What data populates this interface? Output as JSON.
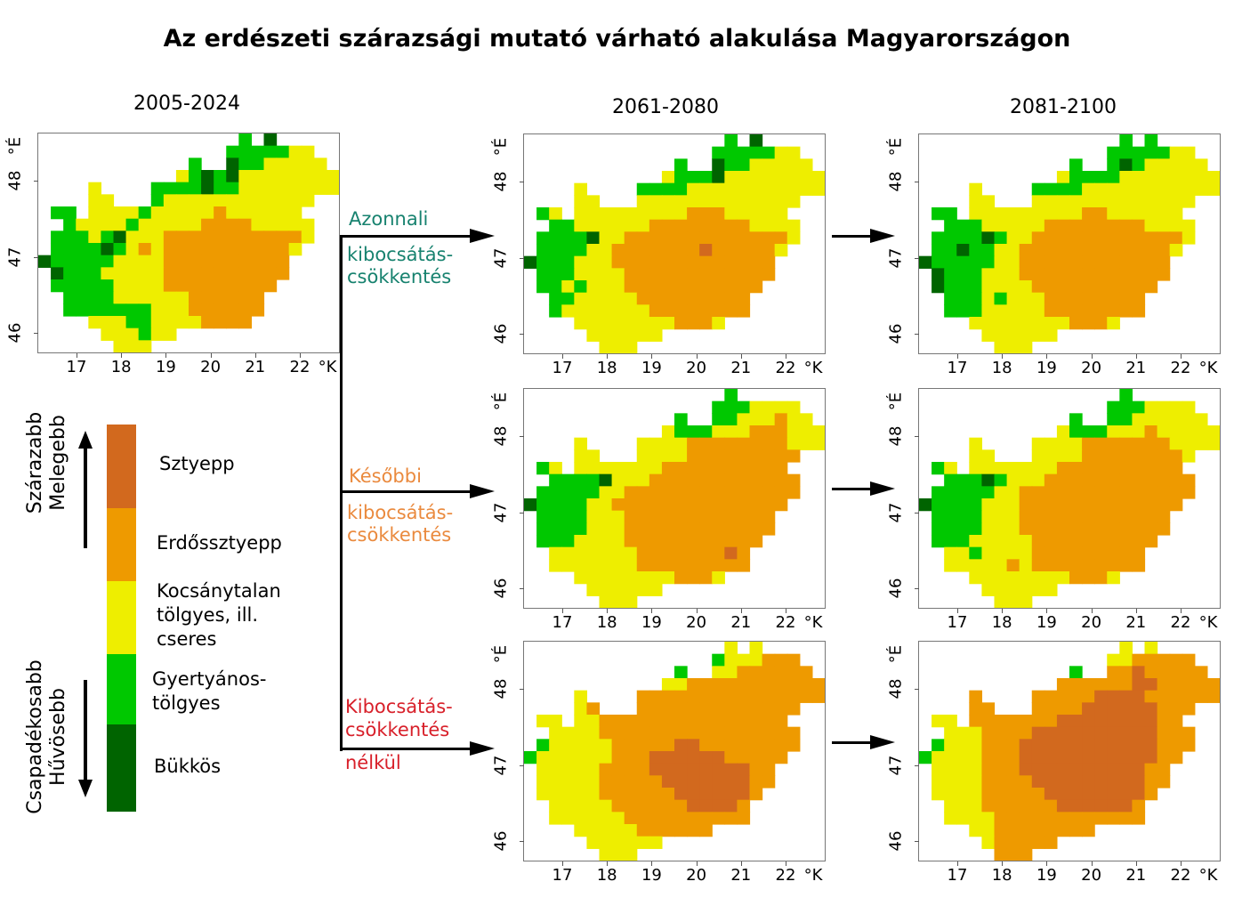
{
  "title": "Az erdészeti szárazsági mutató várható alakulása Magyarországon",
  "periods": [
    "2005-2024",
    "2061-2080",
    "2081-2100"
  ],
  "axes": {
    "lon_ticks": [
      "17",
      "18",
      "19",
      "20",
      "21",
      "22"
    ],
    "lon_unit": "°K",
    "lat_ticks": [
      "48",
      "47",
      "46"
    ],
    "lat_unit": "°É"
  },
  "scenarios": [
    {
      "line1": "Azonnali",
      "line2": "kibocsátás-",
      "line3": "csökkentés",
      "color": "#17826f"
    },
    {
      "line1": "Későbbi",
      "line2": "kibocsátás-",
      "line3": "csökkentés",
      "color": "#ea8a3e"
    },
    {
      "line1": "Kibocsátás-",
      "line2": "csökkentés",
      "line3": "nélkül",
      "color": "#d8202a"
    }
  ],
  "legend": {
    "top_axis": {
      "line1": "Szárazabb",
      "line2": "Melegebb"
    },
    "bottom_axis": {
      "line1": "Csapadékosabb",
      "line2": "Hűvösebb"
    },
    "classes": [
      {
        "code": "S",
        "label": "Sztyepp",
        "color": "#d2691e"
      },
      {
        "code": "O",
        "label": "Erdőssztyepp",
        "color": "#ee9a00"
      },
      {
        "code": "Y",
        "label": "Kocsánytalan tölgyes, ill. cseres",
        "label_lines": [
          "Kocsánytalan",
          "tölgyes, ill.",
          "cseres"
        ],
        "color": "#eeee00"
      },
      {
        "code": "G",
        "label": "Gyertyános-tölgyes",
        "label_lines": [
          "Gyertyános-",
          "tölgyes"
        ],
        "color": "#00c800"
      },
      {
        "code": "D",
        "label": "Bükkös",
        "color": "#006400"
      }
    ]
  },
  "maps": [
    {
      "period": "2005-2024",
      "scenario": "baseline",
      "grid": [
        "................G.D.....",
        "...............GGGGGYY..",
        "............G..DGGYYYYY.",
        "...........YGDGDYYYYYYYY",
        "....Y....GGGGDGGYYYYYYYY",
        "....YY...GYYYYYYYYYYYY..",
        ".GG.YYYYGYYYYYOYYYYYY...",
        "..GYYYYGYYYYYOOOOYYYYY..",
        ".GGGYGDYYYOOOOOOOOOOOY..",
        ".GGGGDGYOYOOOOOOOOOOY...",
        "DGGGGGYYYYOOOOOOOOOO....",
        ".DGGGYYYYYOOOOOOOOOO....",
        ".GGGGGYYYYOOOOOOOOO.....",
        "..GGGGYYYYYYOOOOOO......",
        "..GGGGGGGYYYOOOOOO......",
        "....YYYGGYYYYOOOO.......",
        ".....YYYGYY.............",
        "......YYY..............."
      ]
    },
    {
      "period": "2061-2080",
      "scenario": "Azonnali",
      "grid": [
        "................G.D.....",
        "...............GGGGGYY..",
        "............G..DGGYYYYY.",
        "...........YGGGDYYYYYYYY",
        "....Y....GGGGYYYYYYYYYYY",
        "....YY...YYYYYYYYYYYYY..",
        ".GY.YYYYYYYYYOOOYYYYY...",
        "..GGYYYYYYOOOOOOOOYYYY..",
        ".GGGGDYYOOOOOOOOOOOOOY..",
        ".GGGGYYOOOOOOOSOOOOOY...",
        "DGGGYYYOOOOOOOOOOOOO....",
        ".GGGYYYYOOOOOOOOOOOO....",
        ".GGYGYYYOOOOOOOOOOO.....",
        "..GGYYYYYOOOOOOOOO......",
        "..GYYYYYYYOOOOOOOO......",
        "....YYYYYYYYOOOY........",
        ".....YYYYYY.............",
        "......YYY..............."
      ]
    },
    {
      "period": "2081-2100",
      "scenario": "Azonnali",
      "grid": [
        "................G.G.....",
        "...............GGGGGYY..",
        "............G..GDGYYYYY.",
        "...........YGGGGYYYYYYYY",
        "....Y....GGGGYYYYYYYYYYY",
        "....YY...YYYYYYYYYYYYY..",
        ".GG.YYYYYYYYYOOYYYYYY...",
        "..GGGYYYYYOOOOOOOOYYYY..",
        ".GGGGDGYYOOOOOOOOOOOOY..",
        ".GGDGGYYOOOOOOOOOOOOY...",
        "DGGGGGYYOOOOOOOOOOOO....",
        ".DGGGYYYOOOOOOOOOOOO....",
        ".DGGGYYYYOOOOOOOOOO.....",
        "..GGGYGYYYOOOOOOOO......",
        "..GGGYYYYYOOOOOOOO......",
        "....YYYYYYYYOOOY........",
        ".....YYYYYY.............",
        "......YYY..............."
      ]
    },
    {
      "period": "2061-2080",
      "scenario": "Későbbi",
      "grid": [
        "................G.......",
        "...............GGGYYYY..",
        "............G..GGYYYOYY.",
        "...........YGGGYYYOOOYYY",
        "....Y....YYYYOOOOOOOOYYY",
        "....YY...YYYYOOOOOOOOO..",
        ".GY.YYYYYYYOOOOOOOOOO...",
        "..GGGGDYYYOOOOOOOOOOOO..",
        ".GGGGGYYOOOOOOOOOOOOOO..",
        "DGGGGYYOOOOOOOOOOOOOO...",
        ".GGGGYYYOOOOOOOOOOOO....",
        ".GGGGYYYOOOOOOOOOOOO....",
        ".GGGYYYYOOOOOOOOOOO.....",
        "..YYYYYYYOOOOOOOSO......",
        "..YYYYYYYOOOOOOOOO......",
        "....YYYYYYYYOOOY........",
        ".....YYYYYY.............",
        "......YYY..............."
      ]
    },
    {
      "period": "2081-2100",
      "scenario": "Későbbi",
      "grid": [
        "................G.......",
        "...............GGGYYYY..",
        "............G..GGYYYYYY.",
        "...........YGGGYYYOYYYYY",
        "....Y....YYYYOOOOOOOYYYY",
        "....YY...YYYYOOOOOOOOY..",
        ".GY.YYYYYYYOOOOOOOOOO...",
        "..GGGDGYYYOOOOOOOOOOOO..",
        ".GGGGGYYOOOOOOOOOOOOOO..",
        "DGGGGYYYOOOOOOOOOOOOO...",
        ".GGGGYYYOOOOOOOOOOOO....",
        ".GGGGYYYOOOOOOOOOOOO....",
        ".GGGYYYYYOOOOOOOOOO.....",
        "..YYGYYYYOOOOOOOOO......",
        "..YYYYYOYOOOOOOOOO......",
        "....YYYYYYYYOOOY........",
        ".....YYYYYY.............",
        "......YYY..............."
      ]
    },
    {
      "period": "2061-2080",
      "scenario": "Kibocsátás-csökkentés nélkül",
      "grid": [
        "................Y.Y.....",
        "...............GYYYOOO..",
        "............G..YYOOOOOO.",
        "...........YYOOOOOOOOOOO",
        "....Y....OOOOOOOOOOOOOOO",
        "....YO...OOOOOOOOOOOOO..",
        ".YY.YYOOOOOOOOOOOOOOO...",
        "..YYYYOOOOOOOOOOOOOOOO..",
        ".GYYYYYOOOOOSSOOOOOOOO..",
        "GYYYYYYOOOSSSSSSOOOOO...",
        ".YYYYYOOOOSSSSSSSSOO....",
        ".YYYYYOOOOOSSSSSSSOO....",
        ".YYYYYOOOOOOSSSSSSO.....",
        "..YYYYYOOOOOOSSSSO......",
        "..YYYYYYOOOOOOOOOO......",
        "....YYYYYOOOOOO.........",
        ".....YYYYYY.............",
        "......YYY..............."
      ]
    },
    {
      "period": "2081-2100",
      "scenario": "Kibocsátás-csökkentés nélkül",
      "grid": [
        "................Y.Y.....",
        "...............YYOOOOO..",
        "............G..OOSOOOOO.",
        "...........OOOOOOSSOOOOO",
        "....O....OOOOOSSSSOOOOOO",
        "....OO...OOOOSSSSSSOOO..",
        ".YY.OOOOOOOSSSSSSSSOO...",
        "..YYYOOOOSSSSSSSSSSOOO..",
        ".GYYYOOOSSSSSSSSSSSOOO..",
        "GYYYYOOOSSSSSSSSSSSOO...",
        ".YYYYOOOSSSSSSSSSSOO....",
        ".YYYYOOOOSSSSSSSSSOO....",
        ".YYYYOOOOOSSSSSSSSO.....",
        "..YYYOOOOOOSSSSSSO......",
        "..YYYYOOOOOOOOOOOO......",
        "....YYOOOOOOOO..........",
        ".....YOOOOO.............",
        "......OOO..............."
      ]
    }
  ]
}
